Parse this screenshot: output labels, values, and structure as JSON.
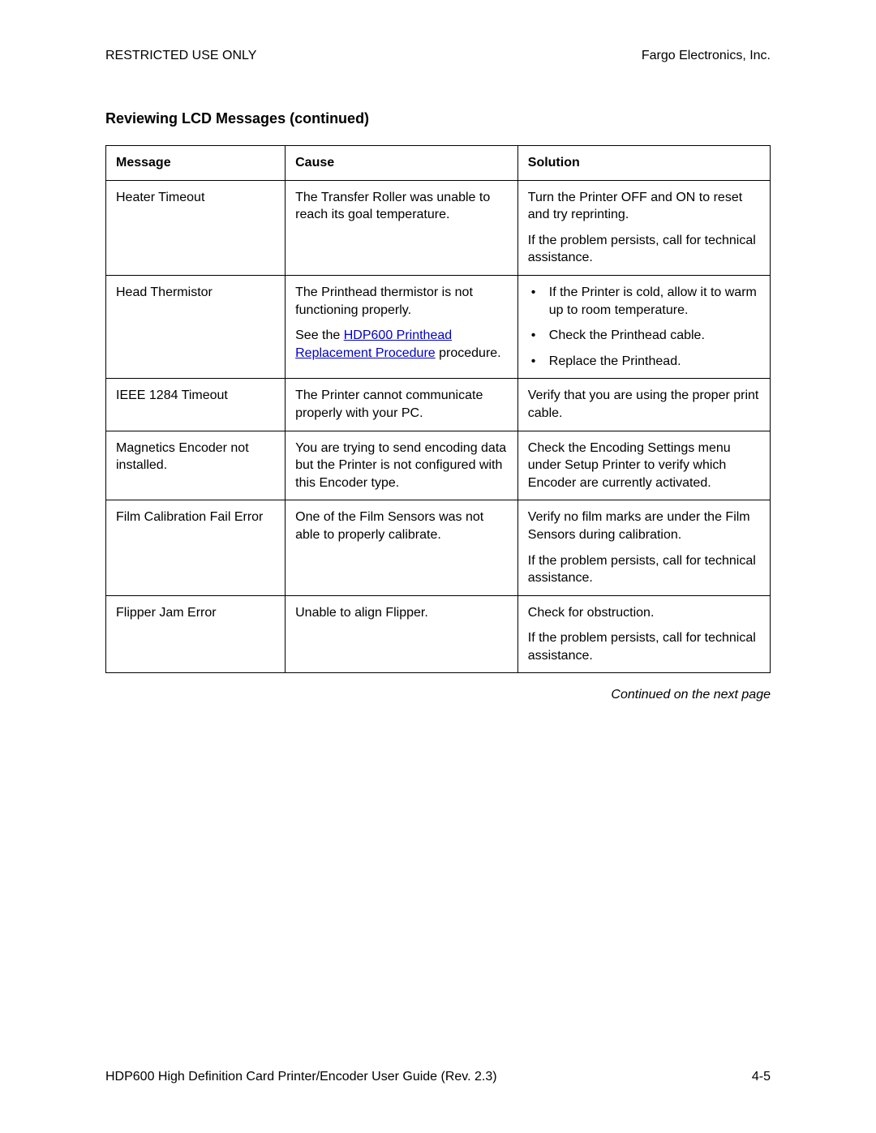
{
  "header": {
    "left": "RESTRICTED USE ONLY",
    "right": "Fargo Electronics, Inc."
  },
  "section_title": "Reviewing LCD Messages (continued)",
  "table": {
    "columns": [
      "Message",
      "Cause",
      "Solution"
    ],
    "rows": [
      {
        "message": "Heater Timeout",
        "cause_paras": [
          "The Transfer Roller was unable to reach its goal temperature."
        ],
        "solution_paras": [
          "Turn the Printer OFF and ON to reset and try reprinting.",
          "If the problem persists, call for technical assistance."
        ]
      },
      {
        "message": "Head Thermistor",
        "cause_prelink": "The Printhead thermistor is not functioning properly.",
        "cause_pre2": "See the ",
        "cause_link": "HDP600 Printhead Replacement Procedure",
        "cause_post": " procedure.",
        "solution_bullets": [
          "If the Printer is cold, allow it to warm up to room temperature.",
          "Check the Printhead cable.",
          "Replace the Printhead."
        ]
      },
      {
        "message": "IEEE 1284 Timeout",
        "cause_paras": [
          "The Printer cannot communicate properly with your PC."
        ],
        "solution_paras": [
          "Verify that you are using the proper print cable."
        ]
      },
      {
        "message": "Magnetics Encoder not installed.",
        "cause_paras": [
          "You are trying to send encoding data but the Printer is not configured with this Encoder type."
        ],
        "solution_paras": [
          "Check the Encoding Settings menu under Setup Printer to verify which Encoder are currently activated."
        ]
      },
      {
        "message": "Film Calibration Fail Error",
        "cause_paras": [
          "One of the Film Sensors was not able to properly calibrate."
        ],
        "solution_paras": [
          "Verify no film marks are under the Film Sensors during calibration.",
          "If the problem persists, call for technical assistance."
        ]
      },
      {
        "message": "Flipper Jam Error",
        "cause_paras": [
          "Unable to align Flipper."
        ],
        "solution_paras": [
          "Check for obstruction.",
          "If the problem persists, call for technical assistance."
        ]
      }
    ]
  },
  "continued": "Continued on the next page",
  "footer": {
    "left": "HDP600 High Definition Card Printer/Encoder User Guide (Rev. 2.3)",
    "right": "4-5"
  }
}
